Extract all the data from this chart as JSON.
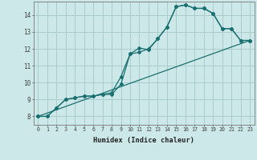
{
  "xlabel": "Humidex (Indice chaleur)",
  "bg_color": "#cce8e8",
  "grid_color": "#aacccc",
  "line_color": "#1a7070",
  "xlim": [
    -0.5,
    23.5
  ],
  "ylim": [
    7.5,
    14.8
  ],
  "yticks": [
    8,
    9,
    10,
    11,
    12,
    13,
    14
  ],
  "xticks": [
    0,
    1,
    2,
    3,
    4,
    5,
    6,
    7,
    8,
    9,
    10,
    11,
    12,
    13,
    14,
    15,
    16,
    17,
    18,
    19,
    20,
    21,
    22,
    23
  ],
  "line1_x": [
    0,
    1,
    2,
    3,
    4,
    5,
    6,
    7,
    8,
    9,
    10,
    11,
    12,
    13,
    14,
    15,
    16,
    17,
    18,
    19,
    20,
    21,
    22,
    23
  ],
  "line1_y": [
    8.0,
    8.0,
    8.5,
    9.0,
    9.1,
    9.2,
    9.2,
    9.3,
    9.3,
    9.9,
    11.7,
    11.8,
    12.0,
    12.6,
    13.3,
    14.5,
    14.6,
    14.4,
    14.4,
    14.1,
    13.2,
    13.2,
    12.5,
    12.5
  ],
  "line2_x": [
    0,
    1,
    2,
    3,
    4,
    5,
    6,
    7,
    8,
    9,
    10,
    11,
    12,
    13,
    14,
    15,
    16,
    17,
    18,
    19,
    20,
    21,
    22,
    23
  ],
  "line2_y": [
    8.0,
    8.0,
    8.5,
    9.0,
    9.1,
    9.2,
    9.2,
    9.3,
    9.4,
    10.35,
    11.7,
    12.05,
    11.95,
    12.6,
    13.3,
    14.5,
    14.6,
    14.4,
    14.4,
    14.1,
    13.2,
    13.2,
    12.5,
    12.5
  ],
  "line3_x": [
    0,
    23
  ],
  "line3_y": [
    8.0,
    12.5
  ]
}
